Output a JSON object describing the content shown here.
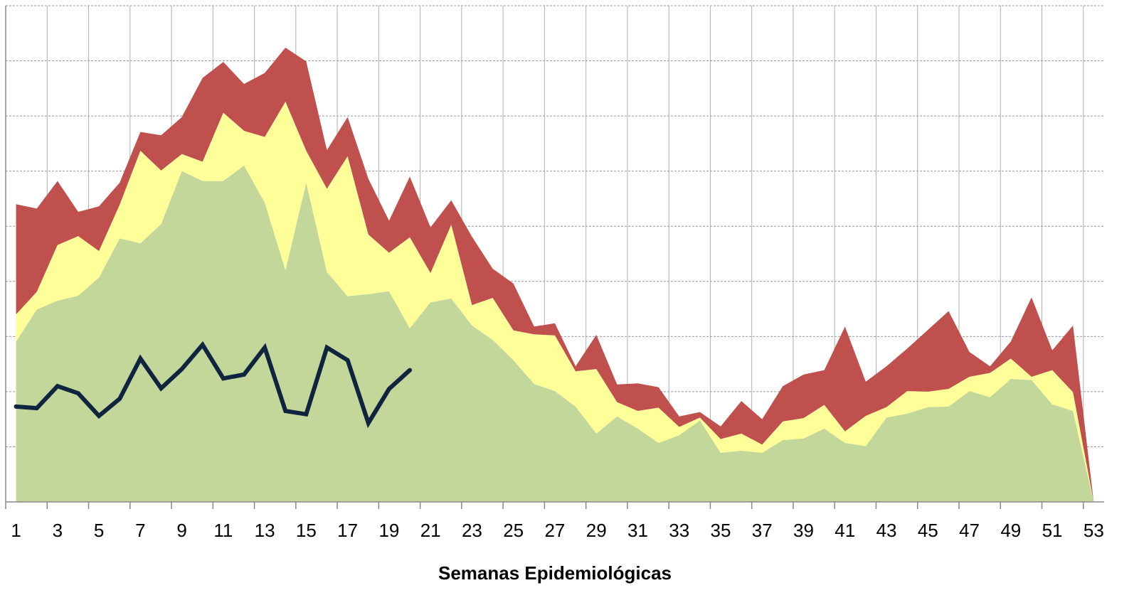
{
  "chart_data": {
    "type": "area",
    "stacked": true,
    "x_label": "Semanas Epidemiológicas",
    "categories": [
      "1",
      null,
      "3",
      null,
      "5",
      null,
      "7",
      null,
      "9",
      null,
      "11",
      null,
      "13",
      null,
      "15",
      null,
      "17",
      null,
      "19",
      null,
      "21",
      null,
      "23",
      null,
      "25",
      null,
      "27",
      null,
      "29",
      null,
      "31",
      null,
      "33",
      null,
      "35",
      null,
      "37",
      null,
      "39",
      null,
      "41",
      null,
      "43",
      null,
      "45",
      null,
      "47",
      null,
      "49",
      null,
      "51",
      null,
      "53"
    ],
    "ylim": [
      0,
      9
    ],
    "yticks": [
      0,
      1,
      2,
      3,
      4,
      5,
      6,
      7,
      8,
      9
    ],
    "grid": true,
    "series": [
      {
        "color": "#c4d79b",
        "values": [
          2.91,
          3.49,
          3.65,
          3.74,
          4.07,
          4.78,
          4.69,
          5.04,
          6.0,
          5.82,
          5.82,
          6.1,
          5.43,
          4.2,
          5.79,
          4.17,
          3.73,
          3.77,
          3.82,
          3.15,
          3.62,
          3.69,
          3.2,
          2.94,
          2.57,
          2.14,
          2.01,
          1.73,
          1.24,
          1.55,
          1.33,
          1.07,
          1.21,
          1.48,
          0.89,
          0.93,
          0.89,
          1.12,
          1.15,
          1.33,
          1.07,
          1.01,
          1.53,
          1.6,
          1.72,
          1.73,
          2.01,
          1.9,
          2.23,
          2.21,
          1.77,
          1.65,
          0
        ]
      },
      {
        "color": "#ffff99",
        "values": [
          0.49,
          0.32,
          1.01,
          1.08,
          0.48,
          0.61,
          1.68,
          0.97,
          0.31,
          0.35,
          1.24,
          0.63,
          1.19,
          3.06,
          0.58,
          1.51,
          2.54,
          1.08,
          0.7,
          1.65,
          0.53,
          1.34,
          0.37,
          0.76,
          0.54,
          0.9,
          1.01,
          0.64,
          1.17,
          0.26,
          0.32,
          0.64,
          0.15,
          0.05,
          0.25,
          0.31,
          0.15,
          0.34,
          0.37,
          0.43,
          0.21,
          0.55,
          0.19,
          0.41,
          0.28,
          0.32,
          0.26,
          0.44,
          0.37,
          0.06,
          0.62,
          0.34,
          0
        ]
      },
      {
        "color": "#c0504d",
        "values": [
          2.0,
          1.51,
          1.16,
          0.44,
          0.81,
          0.4,
          0.34,
          0.64,
          0.67,
          1.52,
          0.92,
          0.85,
          1.16,
          0.98,
          1.62,
          0.7,
          0.71,
          1.01,
          0.58,
          1.1,
          0.83,
          0.44,
          1.24,
          0.53,
          0.85,
          0.14,
          0.22,
          0.09,
          0.62,
          0.32,
          0.5,
          0.37,
          0.19,
          0.1,
          0.23,
          0.59,
          0.46,
          0.64,
          0.79,
          0.63,
          1.9,
          0.62,
          0.74,
          0.77,
          1.12,
          1.41,
          0.45,
          0.12,
          0.31,
          1.44,
          0.36,
          1.21,
          0
        ]
      },
      {
        "type": "line",
        "color": "#0f243e",
        "values": [
          1.73,
          1.7,
          2.1,
          1.97,
          1.56,
          1.87,
          2.6,
          2.06,
          2.41,
          2.85,
          2.24,
          2.31,
          2.8,
          1.65,
          1.59,
          2.8,
          2.57,
          1.43,
          2.05,
          2.39,
          null,
          null,
          null,
          null,
          null,
          null,
          null,
          null,
          null,
          null,
          null,
          null,
          null,
          null,
          null,
          null,
          null,
          null,
          null,
          null,
          null,
          null,
          null,
          null,
          null,
          null,
          null,
          null,
          null,
          null,
          null,
          null,
          null
        ]
      }
    ]
  }
}
